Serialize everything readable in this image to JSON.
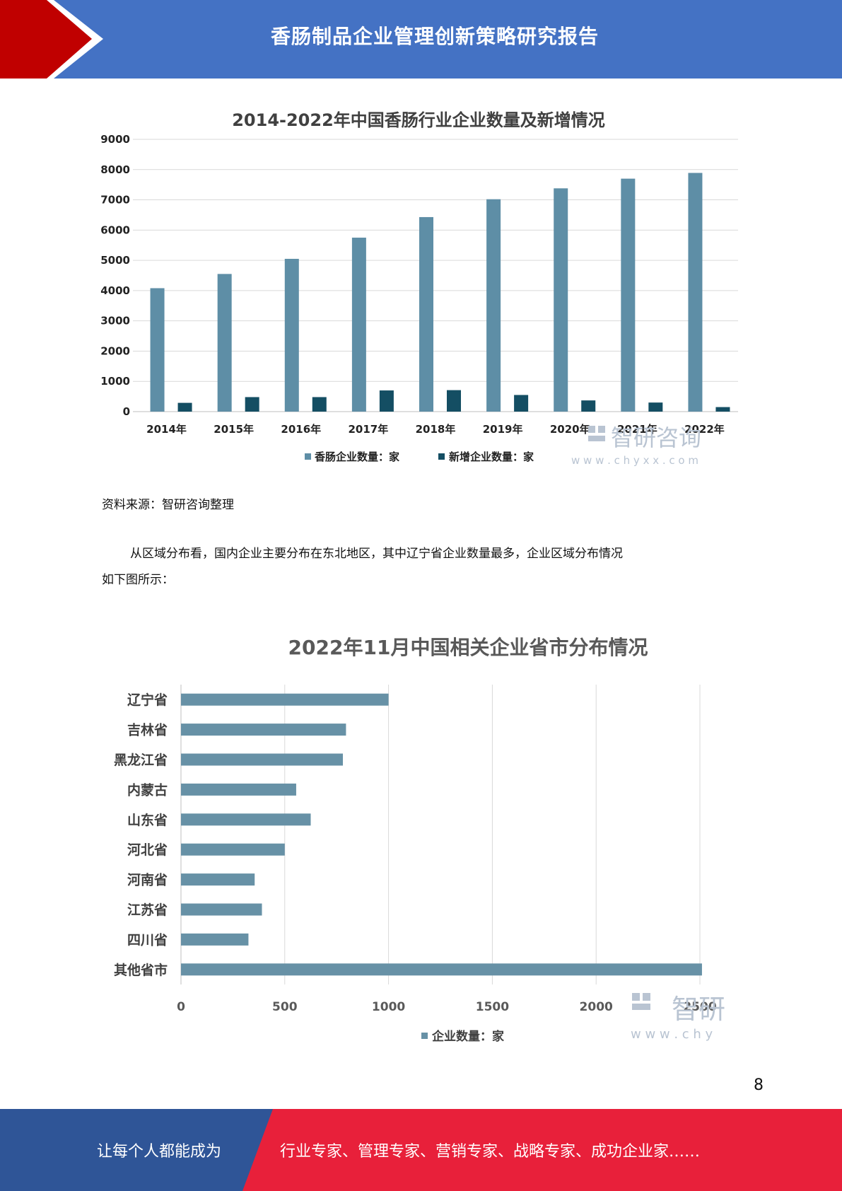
{
  "header": {
    "title": "香肠制品企业管理创新策略研究报告"
  },
  "chart1": {
    "title": "2014-2022年中国香肠行业企业数量及新增情况",
    "legend": [
      "香肠企业数量：家",
      "新增企业数量：家"
    ],
    "watermark": {
      "name": "智研咨询",
      "url": "w w w . c h y x x . c o m"
    },
    "colors": [
      "#5e8ea6",
      "#144e63"
    ]
  },
  "chart_data": [
    {
      "type": "bar",
      "title": "2014-2022年中国香肠行业企业数量及新增情况",
      "categories": [
        "2014年",
        "2015年",
        "2016年",
        "2017年",
        "2018年",
        "2019年",
        "2020年",
        "2021年",
        "2022年"
      ],
      "series": [
        {
          "name": "香肠企业数量：家",
          "values": [
            4080,
            4550,
            5050,
            5750,
            6430,
            7020,
            7380,
            7700,
            7890
          ]
        },
        {
          "name": "新增企业数量：家",
          "values": [
            290,
            480,
            480,
            700,
            710,
            550,
            370,
            300,
            150
          ]
        }
      ],
      "ylim": [
        0,
        9000
      ],
      "yticks": [
        0,
        1000,
        2000,
        3000,
        4000,
        5000,
        6000,
        7000,
        8000,
        9000
      ],
      "grid": true,
      "legend": "bottom"
    },
    {
      "type": "bar",
      "orientation": "horizontal",
      "title": "2022年11月中国相关企业省市分布情况",
      "categories": [
        "辽宁省",
        "吉林省",
        "黑龙江省",
        "内蒙古",
        "山东省",
        "河北省",
        "河南省",
        "江苏省",
        "四川省",
        "其他省市"
      ],
      "series": [
        {
          "name": "企业数量：家",
          "values": [
            1000,
            795,
            780,
            555,
            625,
            500,
            355,
            390,
            325,
            2510
          ]
        }
      ],
      "xlim": [
        0,
        2500
      ],
      "xticks": [
        0,
        500,
        1000,
        1500,
        2000,
        2500
      ],
      "grid": true,
      "legend": "bottom"
    }
  ],
  "chart2": {
    "title": "2022年11月中国相关企业省市分布情况",
    "legend": [
      "企业数量：家"
    ],
    "watermark": {
      "name": "智研",
      "url": "w w w . c h y"
    },
    "color": "#6791a6"
  },
  "source_note": "资料来源：智研咨询整理",
  "paragraph": {
    "line1": "从区域分布看，国内企业主要分布在东北地区，其中辽宁省企业数量最多，企业区域分布情况",
    "line2": "如下图所示："
  },
  "page_number": "8",
  "footer": {
    "left": "让每个人都能成为",
    "right": "行业专家、管理专家、营销专家、战略专家、成功企业家……"
  }
}
